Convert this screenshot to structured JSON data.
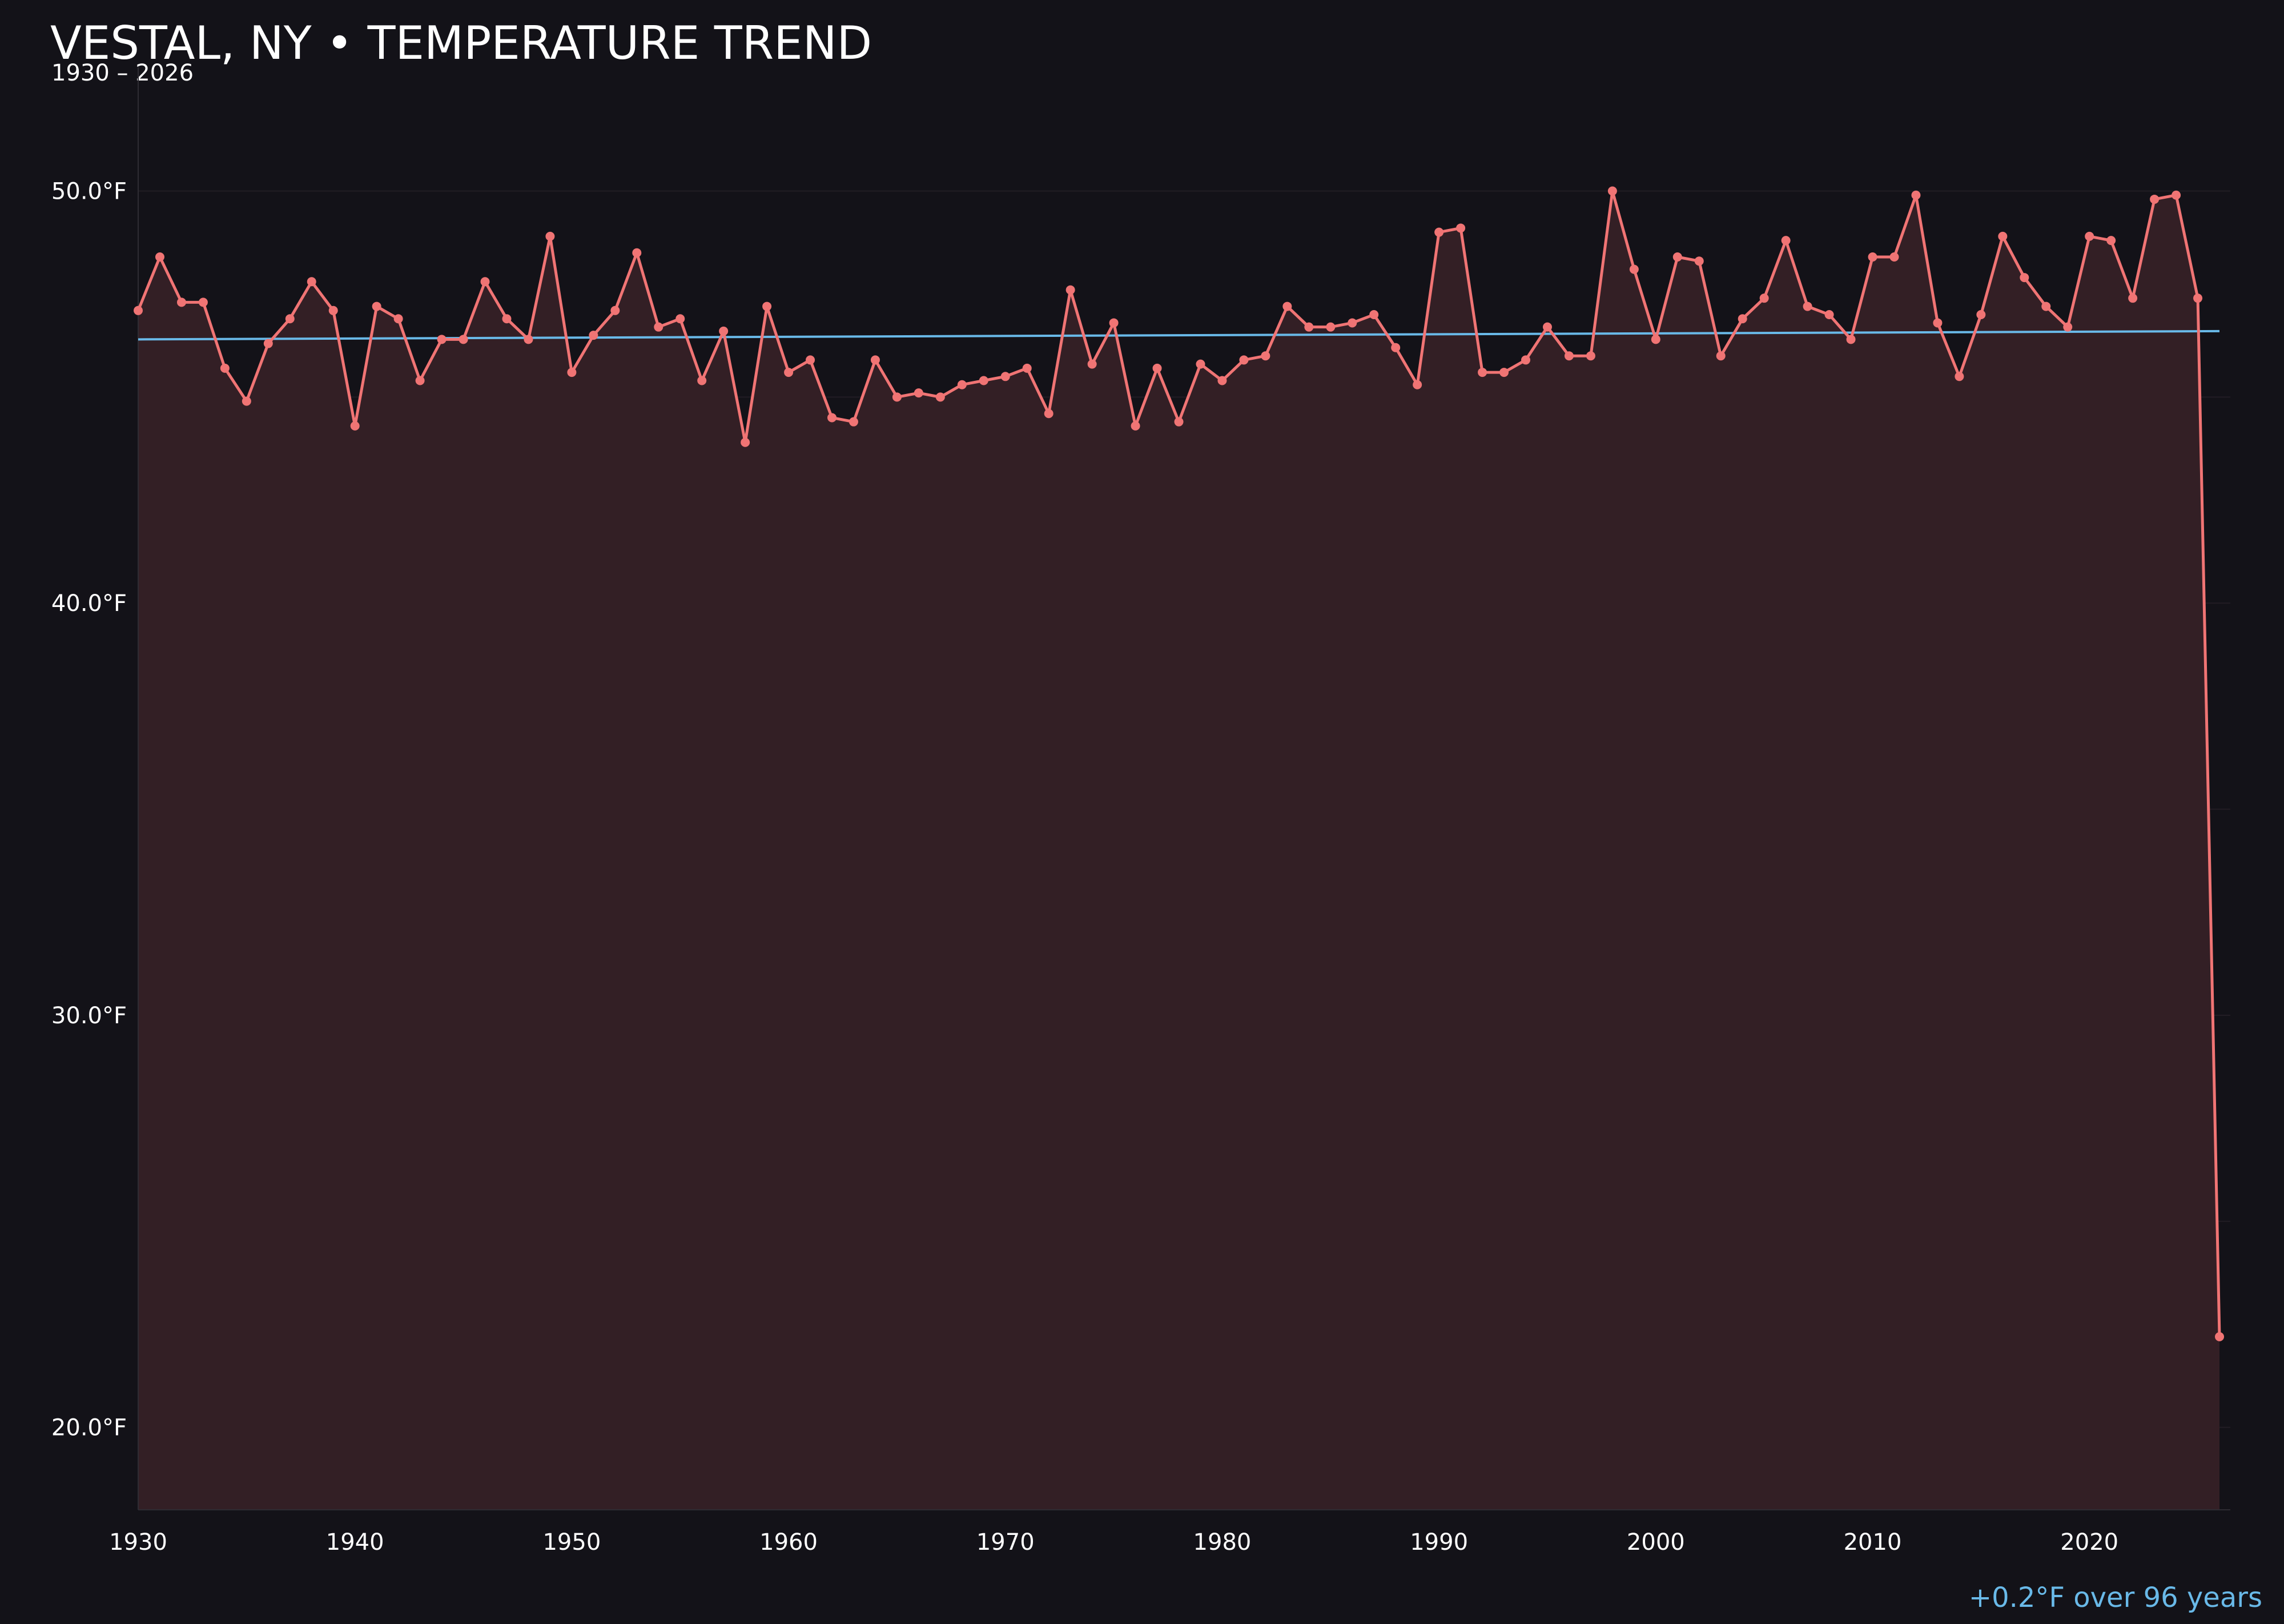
{
  "header": {
    "title": "VESTAL, NY • TEMPERATURE TREND",
    "subtitle": "1930 – 2026"
  },
  "footer": {
    "trend_note": "+0.2°F over 96 years"
  },
  "colors": {
    "background": "#131218",
    "series": "#f07474",
    "area_fill": "#331f25",
    "trend": "#69b9e8",
    "grid": "#221d24",
    "axis": "#2e2c33",
    "text": "#ffffff"
  },
  "chart_data": {
    "type": "line",
    "title": "VESTAL, NY • TEMPERATURE TREND",
    "subtitle": "1930 – 2026",
    "xlabel": "",
    "ylabel": "",
    "xlim": [
      1930,
      2026.5
    ],
    "ylim": [
      18.0,
      53.0
    ],
    "grid": true,
    "x_ticks": [
      1930,
      1940,
      1950,
      1960,
      1970,
      1980,
      1990,
      2000,
      2010,
      2020
    ],
    "x_tick_labels": [
      "1930",
      "1940",
      "1950",
      "1960",
      "1970",
      "1980",
      "1990",
      "2000",
      "2010",
      "2020"
    ],
    "y_ticks": [
      20,
      30,
      40,
      50
    ],
    "y_tick_labels": [
      "20.0°F",
      "30.0°F",
      "40.0°F",
      "50.0°F"
    ],
    "series": [
      {
        "x": [
          1930,
          1931,
          1932,
          1933,
          1934,
          1935,
          1936,
          1937,
          1938,
          1939,
          1940,
          1941,
          1942,
          1943,
          1944,
          1945,
          1946,
          1947,
          1948,
          1949,
          1950,
          1951,
          1952,
          1953,
          1954,
          1955,
          1956,
          1957,
          1958,
          1959,
          1960,
          1961,
          1962,
          1963,
          1964,
          1965,
          1966,
          1967,
          1968,
          1969,
          1970,
          1971,
          1972,
          1973,
          1974,
          1975,
          1976,
          1977,
          1978,
          1979,
          1980,
          1981,
          1982,
          1983,
          1984,
          1985,
          1986,
          1987,
          1988,
          1989,
          1990,
          1991,
          1992,
          1993,
          1994,
          1995,
          1996,
          1997,
          1998,
          1999,
          2000,
          2001,
          2002,
          2003,
          2004,
          2005,
          2006,
          2007,
          2008,
          2009,
          2010,
          2011,
          2012,
          2013,
          2014,
          2015,
          2016,
          2017,
          2018,
          2019,
          2020,
          2021,
          2022,
          2023,
          2024,
          2025,
          2026
        ],
        "values": [
          47.1,
          48.4,
          47.3,
          47.3,
          45.7,
          44.9,
          46.3,
          46.9,
          47.8,
          47.1,
          44.3,
          47.2,
          46.9,
          45.4,
          46.4,
          46.4,
          47.8,
          46.9,
          46.4,
          48.9,
          45.6,
          46.5,
          47.1,
          48.5,
          46.7,
          46.9,
          45.4,
          46.6,
          43.9,
          47.2,
          45.6,
          45.9,
          44.5,
          44.4,
          45.9,
          45.0,
          45.1,
          45.0,
          45.3,
          45.4,
          45.5,
          45.7,
          44.6,
          47.6,
          45.8,
          46.8,
          44.3,
          45.7,
          44.4,
          45.8,
          45.4,
          45.9,
          46.0,
          47.2,
          46.7,
          46.7,
          46.8,
          47.0,
          46.2,
          45.3,
          49.0,
          49.1,
          45.6,
          45.6,
          45.9,
          46.7,
          46.0,
          46.0,
          50.0,
          48.1,
          46.4,
          48.4,
          48.3,
          46.0,
          46.9,
          47.4,
          48.8,
          47.2,
          47.0,
          46.4,
          48.4,
          48.4,
          49.9,
          46.8,
          45.5,
          47.0,
          48.9,
          47.9,
          47.2,
          46.7,
          48.9,
          48.8,
          47.4,
          49.8,
          49.9,
          47.4,
          22.2
        ]
      }
    ],
    "trend_line": {
      "x": [
        1930,
        2026
      ],
      "y": [
        46.4,
        46.6
      ]
    }
  }
}
